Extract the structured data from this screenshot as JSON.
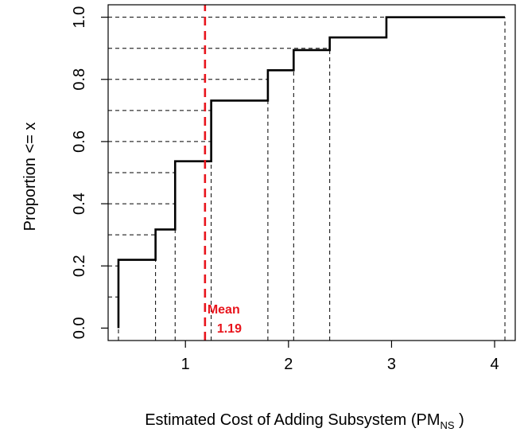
{
  "chart_data": {
    "type": "line",
    "subtype": "empirical-cdf-step",
    "xlabel": "Estimated Cost of Adding Subsystem (PM",
    "xlabel_subscript": "NS",
    "xlabel_suffix": " )",
    "ylabel": "Proportion <= x",
    "xlim": [
      0.25,
      4.2
    ],
    "ylim": [
      -0.04,
      1.04
    ],
    "x_ticks": [
      1,
      2,
      3,
      4
    ],
    "x_tick_labels": [
      "1",
      "2",
      "3",
      "4"
    ],
    "y_ticks": [
      0.0,
      0.2,
      0.4,
      0.6,
      0.8,
      1.0
    ],
    "y_tick_labels": [
      "0.0",
      "0.2",
      "0.4",
      "0.6",
      "0.8",
      "1.0"
    ],
    "grid": false,
    "steps": [
      {
        "x": 0.35,
        "y": 0.2195
      },
      {
        "x": 0.71,
        "y": 0.3171
      },
      {
        "x": 0.9,
        "y": 0.5366
      },
      {
        "x": 1.25,
        "y": 0.7317
      },
      {
        "x": 1.8,
        "y": 0.8293
      },
      {
        "x": 2.05,
        "y": 0.8943
      },
      {
        "x": 2.4,
        "y": 0.935
      },
      {
        "x": 2.95,
        "y": 1.0
      },
      {
        "x": 4.1,
        "y": 1.0
      }
    ],
    "reference_levels": [
      0.1,
      0.2,
      0.3,
      0.4,
      0.5,
      0.6,
      0.7,
      0.8,
      0.9,
      1.0
    ],
    "reference_x": [
      0.35,
      0.71,
      0.9,
      1.25,
      1.8,
      2.05,
      2.4,
      4.1
    ],
    "mean": {
      "value": 1.19,
      "label": "Mean",
      "value_label": "1.19",
      "color": "#e8141c"
    },
    "line_color": "#000000"
  }
}
